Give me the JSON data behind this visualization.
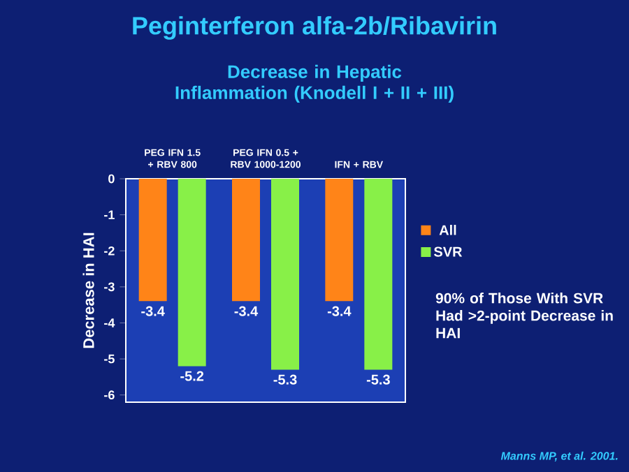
{
  "chart_data": {
    "type": "bar",
    "title": "Peginterferon alfa-2b/Ribavirin",
    "subtitle": "Decrease in Hepatic Inflammation (Knodell I + II + III)",
    "ylabel": "Decrease in HAI",
    "categories": [
      "PEG IFN 1.5 + RBV 800",
      "PEG IFN 0.5 + RBV 1000-1200",
      "IFN + RBV"
    ],
    "series": [
      {
        "name": "All",
        "color": "#ff8418",
        "values": [
          -3.4,
          -3.4,
          -3.4
        ]
      },
      {
        "name": "SVR",
        "color": "#88f048",
        "values": [
          -5.2,
          -5.3,
          -5.3
        ]
      }
    ],
    "ylim": [
      -6.2,
      0
    ],
    "yticks": [
      -6,
      -5,
      -4,
      -3,
      -2,
      -1,
      0
    ],
    "data_labels": true,
    "legend": "right",
    "grid": false,
    "annotations": [
      "90% of Those With SVR Had >2-point Decrease in HAI",
      "Manns MP, et al. 2001."
    ]
  }
}
